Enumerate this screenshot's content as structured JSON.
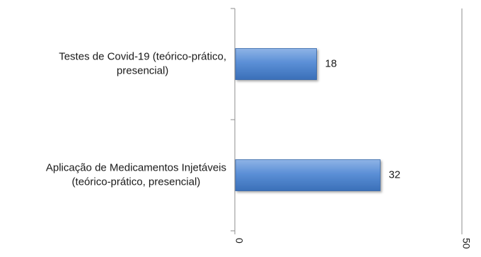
{
  "chart_data": {
    "type": "bar",
    "orientation": "horizontal",
    "categories": [
      [
        "Testes de Covid-19 (teórico-prático,",
        "presencial)"
      ],
      [
        "Aplicação de Medicamentos Injetáveis",
        "(teórico-prático, presencial)"
      ]
    ],
    "values": [
      18,
      32
    ],
    "xlim": [
      0,
      50
    ],
    "x_ticks": [
      "0",
      "50"
    ],
    "bar_color": "#4f86d0",
    "axis_color": "#8c8c8c",
    "grid": true,
    "legend": "none"
  }
}
